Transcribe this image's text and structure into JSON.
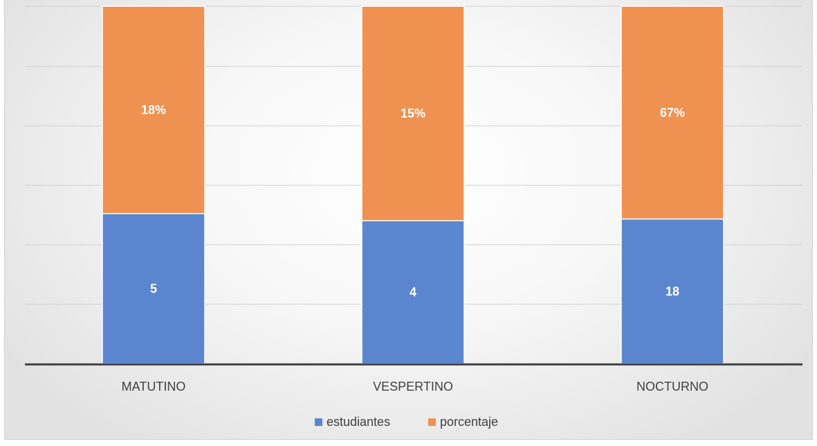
{
  "chart_data": {
    "type": "bar",
    "stacked": true,
    "categories": [
      "MATUTINO",
      "VESPERTINO",
      "NOCTURNO"
    ],
    "series": [
      {
        "name": "estudiantes",
        "values": [
          5,
          4,
          18
        ],
        "labels": [
          "5",
          "4",
          "18"
        ],
        "color": "#5b86cf"
      },
      {
        "name": "porcentaje",
        "values": [
          0.18,
          0.15,
          0.67
        ],
        "labels": [
          "18%",
          "15%",
          "67%"
        ],
        "color": "#ef9150"
      }
    ],
    "bar_share": [
      [
        0.42,
        0.58
      ],
      [
        0.4,
        0.6
      ],
      [
        0.405,
        0.595
      ]
    ],
    "title": "",
    "xlabel": "",
    "ylabel": "",
    "grid": true,
    "legend": "bottom"
  }
}
